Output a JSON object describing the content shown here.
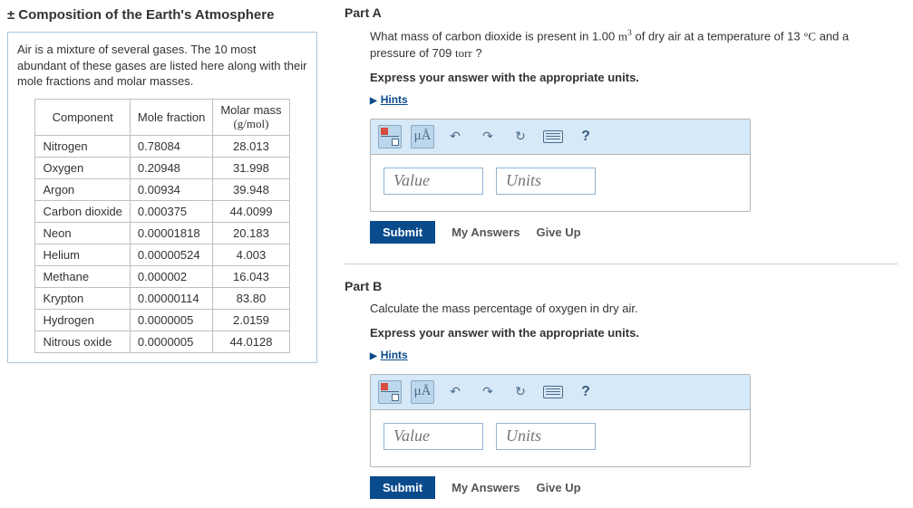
{
  "sidebar": {
    "title": "Composition of the Earth's Atmosphere",
    "intro": "Air is a mixture of several gases. The 10 most abundant of these gases are listed here along with their mole fractions and molar masses.",
    "table": {
      "headers": [
        "Component",
        "Mole fraction",
        "Molar mass (g/mol)"
      ],
      "head_component": "Component",
      "head_mole": "Mole fraction",
      "head_mm_l1": "Molar mass",
      "head_mm_l2": "(g/mol)",
      "rows": [
        {
          "c": "Nitrogen",
          "mf": "0.78084",
          "mm": "28.013"
        },
        {
          "c": "Oxygen",
          "mf": "0.20948",
          "mm": "31.998"
        },
        {
          "c": "Argon",
          "mf": "0.00934",
          "mm": "39.948"
        },
        {
          "c": "Carbon dioxide",
          "mf": "0.000375",
          "mm": "44.0099"
        },
        {
          "c": "Neon",
          "mf": "0.00001818",
          "mm": "20.183"
        },
        {
          "c": "Helium",
          "mf": "0.00000524",
          "mm": "4.003"
        },
        {
          "c": "Methane",
          "mf": "0.000002",
          "mm": "16.043"
        },
        {
          "c": "Krypton",
          "mf": "0.00000114",
          "mm": "83.80"
        },
        {
          "c": "Hydrogen",
          "mf": "0.0000005",
          "mm": "2.0159"
        },
        {
          "c": "Nitrous oxide",
          "mf": "0.0000005",
          "mm": "44.0128"
        }
      ]
    }
  },
  "partA": {
    "label": "Part A",
    "q_pre": "What mass of carbon dioxide is present in 1.00 ",
    "q_vol_unit": "m",
    "q_vol_exp": "3",
    "q_mid": " of dry air at a temperature of 13 ",
    "q_deg": "°",
    "q_tempunit": "C",
    "q_post": " and a pressure of 709 ",
    "q_p_unit": "torr",
    "q_end": " ?",
    "instruct": "Express your answer with the appropriate units.",
    "hints": "Hints",
    "value_ph": "Value",
    "units_ph": "Units",
    "submit": "Submit",
    "myanswers": "My Answers",
    "giveup": "Give Up"
  },
  "partB": {
    "label": "Part B",
    "q": "Calculate the mass percentage of oxygen in dry air.",
    "instruct": "Express your answer with the appropriate units.",
    "hints": "Hints",
    "value_ph": "Value",
    "units_ph": "Units",
    "submit": "Submit",
    "myanswers": "My Answers",
    "giveup": "Give Up"
  },
  "toolbar": {
    "mu_a": "μÅ"
  }
}
